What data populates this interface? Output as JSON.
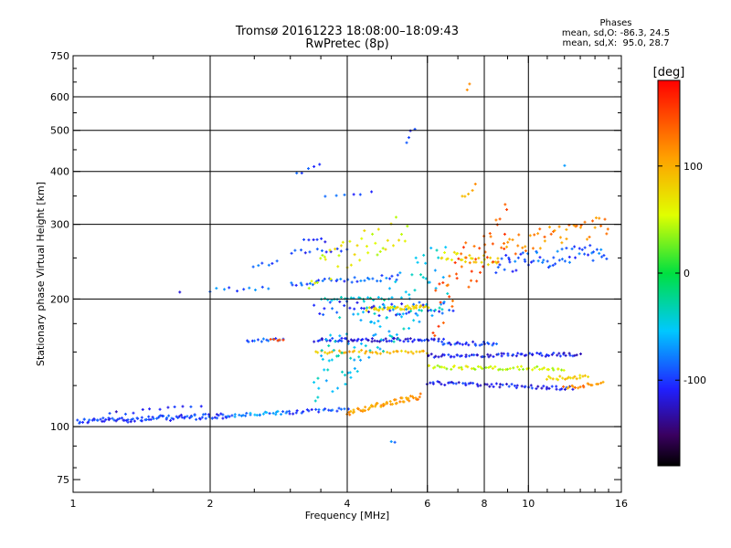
{
  "header": {
    "title_line1": "Tromsø 20161223 18:08:00–18:09:43",
    "title_line2": "RwPretec (8p)"
  },
  "phases": {
    "title": "Phases",
    "o_line": "mean, sd,O: -86.3, 24.5",
    "x_line": "mean, sd,X:  95.0, 28.7"
  },
  "colorbar": {
    "unit": "[deg]",
    "ticks": [
      "100",
      "0",
      "-100"
    ],
    "tick_values": [
      100,
      0,
      -100
    ],
    "range": [
      -180,
      180
    ]
  },
  "chart_data": {
    "type": "scatter",
    "xlabel": "Frequency [MHz]",
    "ylabel": "Stationary phase Virtual Height [km]",
    "xscale": "log",
    "yscale": "log",
    "xlim": [
      1,
      16
    ],
    "ylim": [
      70,
      750
    ],
    "x_ticks": [
      1,
      2,
      4,
      6,
      8,
      10,
      16
    ],
    "x_tick_labels": [
      "1",
      "2",
      "4",
      "6",
      "8",
      "10",
      "16"
    ],
    "y_ticks": [
      75,
      100,
      200,
      300,
      400,
      500,
      600,
      750
    ],
    "y_tick_labels": [
      "75",
      "100",
      "200",
      "300",
      "400",
      "500",
      "600",
      "750"
    ],
    "grid": true,
    "grid_x": [
      2,
      4,
      6,
      8,
      10
    ],
    "grid_y": [
      100,
      200,
      300,
      400,
      500,
      600
    ],
    "traces": [
      {
        "f": [
          1.02,
          2.2
        ],
        "h": [
          103,
          106
        ],
        "phase": -100,
        "scatter": 3,
        "n": 95
      },
      {
        "f": [
          2.2,
          3.0
        ],
        "h": [
          106,
          108
        ],
        "phase": -75,
        "scatter": 2,
        "n": 28
      },
      {
        "f": [
          3.0,
          4.0
        ],
        "h": [
          108,
          110
        ],
        "phase": -95,
        "scatter": 2,
        "n": 22
      },
      {
        "f": [
          4.0,
          5.8
        ],
        "h": [
          108,
          118
        ],
        "phase": 110,
        "scatter": 3,
        "n": 55
      },
      {
        "f": [
          2.4,
          2.9
        ],
        "h": [
          160,
          160
        ],
        "phase": -95,
        "scatter": 2,
        "n": 14
      },
      {
        "f": [
          2.7,
          2.9
        ],
        "h": [
          160,
          160
        ],
        "phase": 140,
        "scatter": 1,
        "n": 5
      },
      {
        "f": [
          3.4,
          6.5
        ],
        "h": [
          160,
          160
        ],
        "phase": -110,
        "scatter": 2,
        "n": 65
      },
      {
        "f": [
          6.5,
          8.5
        ],
        "h": [
          157,
          157
        ],
        "phase": -100,
        "scatter": 2,
        "n": 25
      },
      {
        "f": [
          3.4,
          6.0
        ],
        "h": [
          150,
          150
        ],
        "phase": 95,
        "scatter": 2,
        "n": 40
      },
      {
        "f": [
          6.0,
          13.0
        ],
        "h": [
          147,
          148
        ],
        "phase": -110,
        "scatter": 2,
        "n": 70
      },
      {
        "f": [
          6.0,
          12.0
        ],
        "h": [
          138,
          137
        ],
        "phase": 50,
        "scatter": 2,
        "n": 55
      },
      {
        "f": [
          11.0,
          13.5
        ],
        "h": [
          130,
          131
        ],
        "phase": 80,
        "scatter": 2,
        "n": 20
      },
      {
        "f": [
          6.0,
          12.5
        ],
        "h": [
          127,
          123
        ],
        "phase": -110,
        "scatter": 2,
        "n": 60
      },
      {
        "f": [
          12.0,
          14.5
        ],
        "h": [
          123,
          127
        ],
        "phase": 120,
        "scatter": 2,
        "n": 18
      },
      {
        "f": [
          4.4,
          6.0
        ],
        "h": [
          189,
          192
        ],
        "phase": 75,
        "scatter": 2,
        "n": 45
      },
      {
        "f": [
          3.4,
          6.8
        ],
        "h": [
          190,
          190
        ],
        "phase": -100,
        "scatter": 8,
        "n": 40
      },
      {
        "f": [
          3.5,
          5.0
        ],
        "h": [
          200,
          200
        ],
        "phase": -40,
        "scatter": 2,
        "n": 22
      },
      {
        "f": [
          3.0,
          5.2
        ],
        "h": [
          218,
          225
        ],
        "phase": -90,
        "scatter": 3,
        "n": 35
      },
      {
        "f": [
          2.0,
          2.7
        ],
        "h": [
          210,
          212
        ],
        "phase": -85,
        "scatter": 2,
        "n": 10
      },
      {
        "f": [
          2.5,
          2.8
        ],
        "h": [
          240,
          244
        ],
        "phase": -95,
        "scatter": 2,
        "n": 6
      },
      {
        "f": [
          3.0,
          4.0
        ],
        "h": [
          258,
          262
        ],
        "phase": -100,
        "scatter": 2,
        "n": 12
      },
      {
        "f": [
          3.2,
          3.6
        ],
        "h": [
          275,
          275
        ],
        "phase": -100,
        "scatter": 2,
        "n": 6
      },
      {
        "f": [
          3.3,
          5.4
        ],
        "h": [
          225,
          300
        ],
        "phase": 60,
        "scatter": 18,
        "n": 40
      },
      {
        "f": [
          3.4,
          6.6
        ],
        "h": [
          130,
          230
        ],
        "phase": -50,
        "scatter": 40,
        "n": 120
      },
      {
        "f": [
          6.4,
          8.6
        ],
        "h": [
          255,
          245
        ],
        "phase": 75,
        "scatter": 5,
        "n": 28
      },
      {
        "f": [
          8.5,
          14.8
        ],
        "h": [
          240,
          260
        ],
        "phase": -90,
        "scatter": 10,
        "n": 60
      },
      {
        "f": [
          8.8,
          15.0
        ],
        "h": [
          265,
          300
        ],
        "phase": 120,
        "scatter": 12,
        "n": 45
      },
      {
        "f": [
          6.2,
          9.0
        ],
        "h": [
          185,
          300
        ],
        "phase": 140,
        "scatter": 30,
        "n": 50
      },
      {
        "f": [
          3.1,
          3.5
        ],
        "h": [
          395,
          415
        ],
        "phase": -100,
        "scatter": 2,
        "n": 5
      },
      {
        "f": [
          3.6,
          4.5
        ],
        "h": [
          350,
          355
        ],
        "phase": -100,
        "scatter": 2,
        "n": 6
      },
      {
        "f": [
          5.4,
          5.6
        ],
        "h": [
          470,
          505
        ],
        "phase": -100,
        "scatter": 3,
        "n": 4
      },
      {
        "f": [
          7.2,
          7.6
        ],
        "h": [
          350,
          370
        ],
        "phase": 100,
        "scatter": 5,
        "n": 5
      },
      {
        "f": [
          7.3,
          7.4
        ],
        "h": [
          620,
          640
        ],
        "phase": 130,
        "scatter": 2,
        "n": 2
      },
      {
        "f": [
          1.7,
          1.72
        ],
        "h": [
          208,
          208
        ],
        "phase": -100,
        "scatter": 1,
        "n": 1
      },
      {
        "f": [
          5.0,
          5.1
        ],
        "h": [
          92,
          92
        ],
        "phase": -80,
        "scatter": 1,
        "n": 2
      },
      {
        "f": [
          11.8,
          12.2
        ],
        "h": [
          410,
          412
        ],
        "phase": -80,
        "scatter": 1,
        "n": 1
      },
      {
        "f": [
          1.2,
          1.9
        ],
        "h": [
          107,
          112
        ],
        "phase": -110,
        "scatter": 2,
        "n": 12
      }
    ]
  }
}
